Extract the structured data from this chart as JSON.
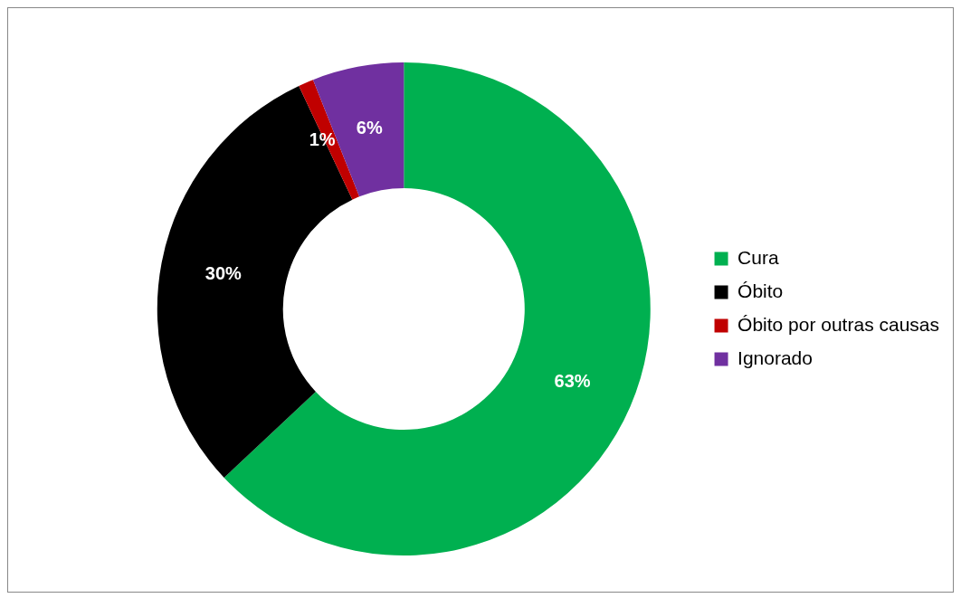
{
  "chart_data": {
    "type": "donut",
    "categories": [
      "Cura",
      "Óbito",
      "Óbito por outras causas",
      "Ignorado"
    ],
    "values": [
      63,
      30,
      1,
      6
    ],
    "colors": [
      "#00b050",
      "#000000",
      "#c00000",
      "#7030a0"
    ],
    "value_labels": [
      "63%",
      "30%",
      "1%",
      "6%"
    ],
    "legend": "right"
  }
}
